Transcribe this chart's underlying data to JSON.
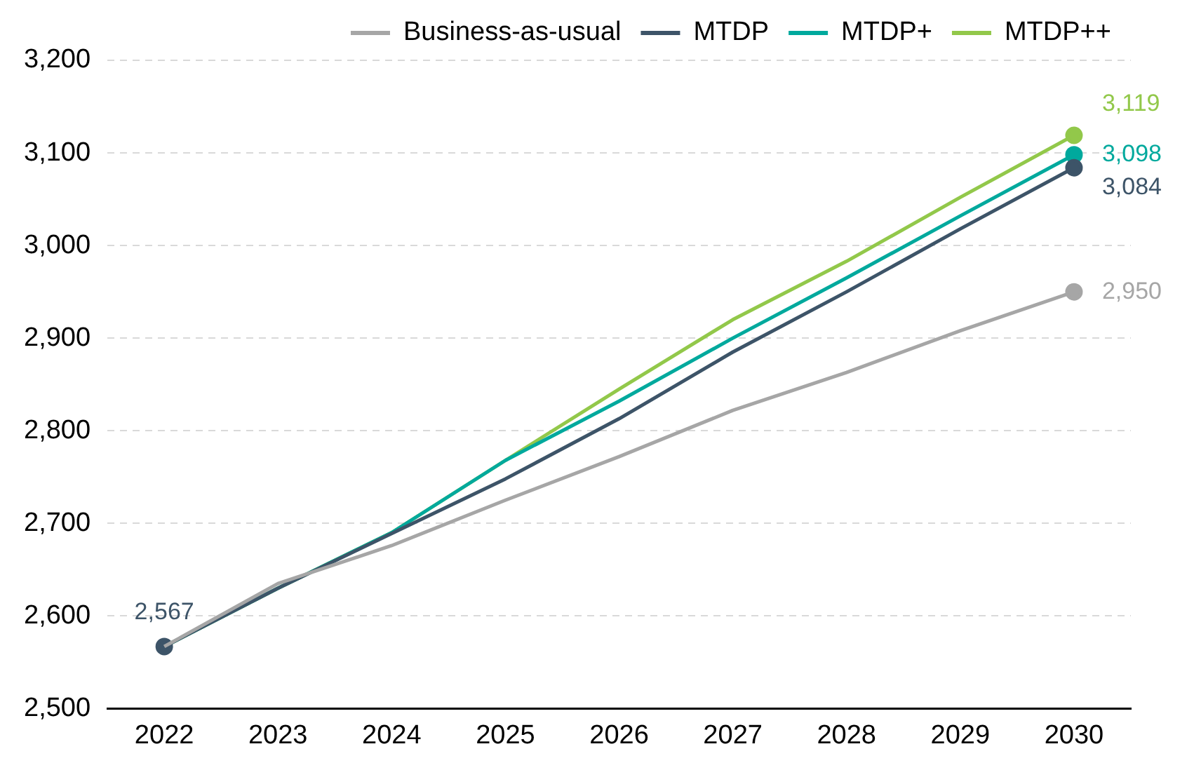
{
  "chart_data": {
    "type": "line",
    "categories": [
      "2022",
      "2023",
      "2024",
      "2025",
      "2026",
      "2027",
      "2028",
      "2029",
      "2030"
    ],
    "series": [
      {
        "name": "Business-as-usual",
        "color": "#a6a6a6",
        "values": [
          2567,
          2635,
          2676,
          2725,
          2772,
          2822,
          2863,
          2908,
          2950
        ],
        "value_labels": [
          null,
          null,
          null,
          null,
          null,
          null,
          null,
          null,
          "2,950"
        ]
      },
      {
        "name": "MTDP",
        "color": "#3d5468",
        "values": [
          2567,
          2630,
          2689,
          2748,
          2813,
          2885,
          2950,
          3018,
          3084
        ],
        "value_labels": [
          "2,567",
          null,
          null,
          null,
          null,
          null,
          null,
          null,
          "3,084"
        ]
      },
      {
        "name": "MTDP+",
        "color": "#00a99d",
        "values": [
          2567,
          2630,
          2690,
          2768,
          2832,
          2900,
          2965,
          3032,
          3098
        ],
        "value_labels": [
          null,
          null,
          null,
          null,
          null,
          null,
          null,
          null,
          "3,098"
        ]
      },
      {
        "name": "MTDP++",
        "color": "#92c84a",
        "values": [
          2567,
          2630,
          2690,
          2768,
          2845,
          2920,
          2983,
          3052,
          3119
        ],
        "value_labels": [
          null,
          null,
          null,
          null,
          null,
          null,
          null,
          null,
          "3,119"
        ]
      }
    ],
    "ylim": [
      2500,
      3200
    ],
    "yticks": [
      {
        "value": 2500,
        "label": "2,500"
      },
      {
        "value": 2600,
        "label": "2,600"
      },
      {
        "value": 2700,
        "label": "2,700"
      },
      {
        "value": 2800,
        "label": "2,800"
      },
      {
        "value": 2900,
        "label": "2,900"
      },
      {
        "value": 3000,
        "label": "3,000"
      },
      {
        "value": 3100,
        "label": "3,100"
      },
      {
        "value": 3200,
        "label": "3,200"
      }
    ],
    "grid": "y",
    "legend": "top",
    "line_style": "solid"
  }
}
